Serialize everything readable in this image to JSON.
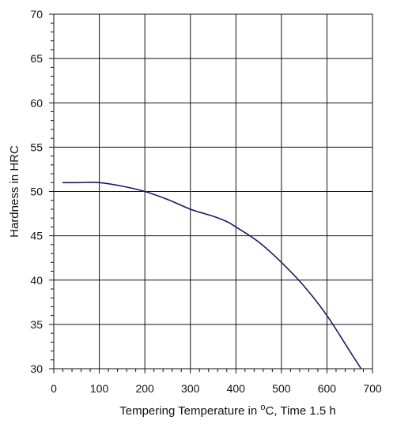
{
  "chart_data": {
    "type": "line",
    "title": "",
    "xlabel": {
      "prefix": "Tempering Temperature in ",
      "superscript": "o",
      "suffix": "C, Time 1.5 h"
    },
    "ylabel": "Hardness in HRC",
    "xlim": [
      0,
      700
    ],
    "ylim": [
      30,
      70
    ],
    "x_ticks": [
      0,
      100,
      200,
      300,
      400,
      500,
      600,
      700
    ],
    "y_ticks": [
      30,
      35,
      40,
      45,
      50,
      55,
      60,
      65,
      70
    ],
    "grid": true,
    "legend": "none",
    "series": [
      {
        "color": "#1a1a66",
        "x": [
          20,
          50,
          100,
          150,
          200,
          250,
          300,
          350,
          380,
          400,
          450,
          500,
          550,
          600,
          650,
          675
        ],
        "y": [
          51,
          51,
          51,
          50.6,
          50,
          49.1,
          48,
          47.2,
          46.6,
          46,
          44.3,
          42,
          39.3,
          36,
          32,
          30
        ]
      }
    ]
  }
}
